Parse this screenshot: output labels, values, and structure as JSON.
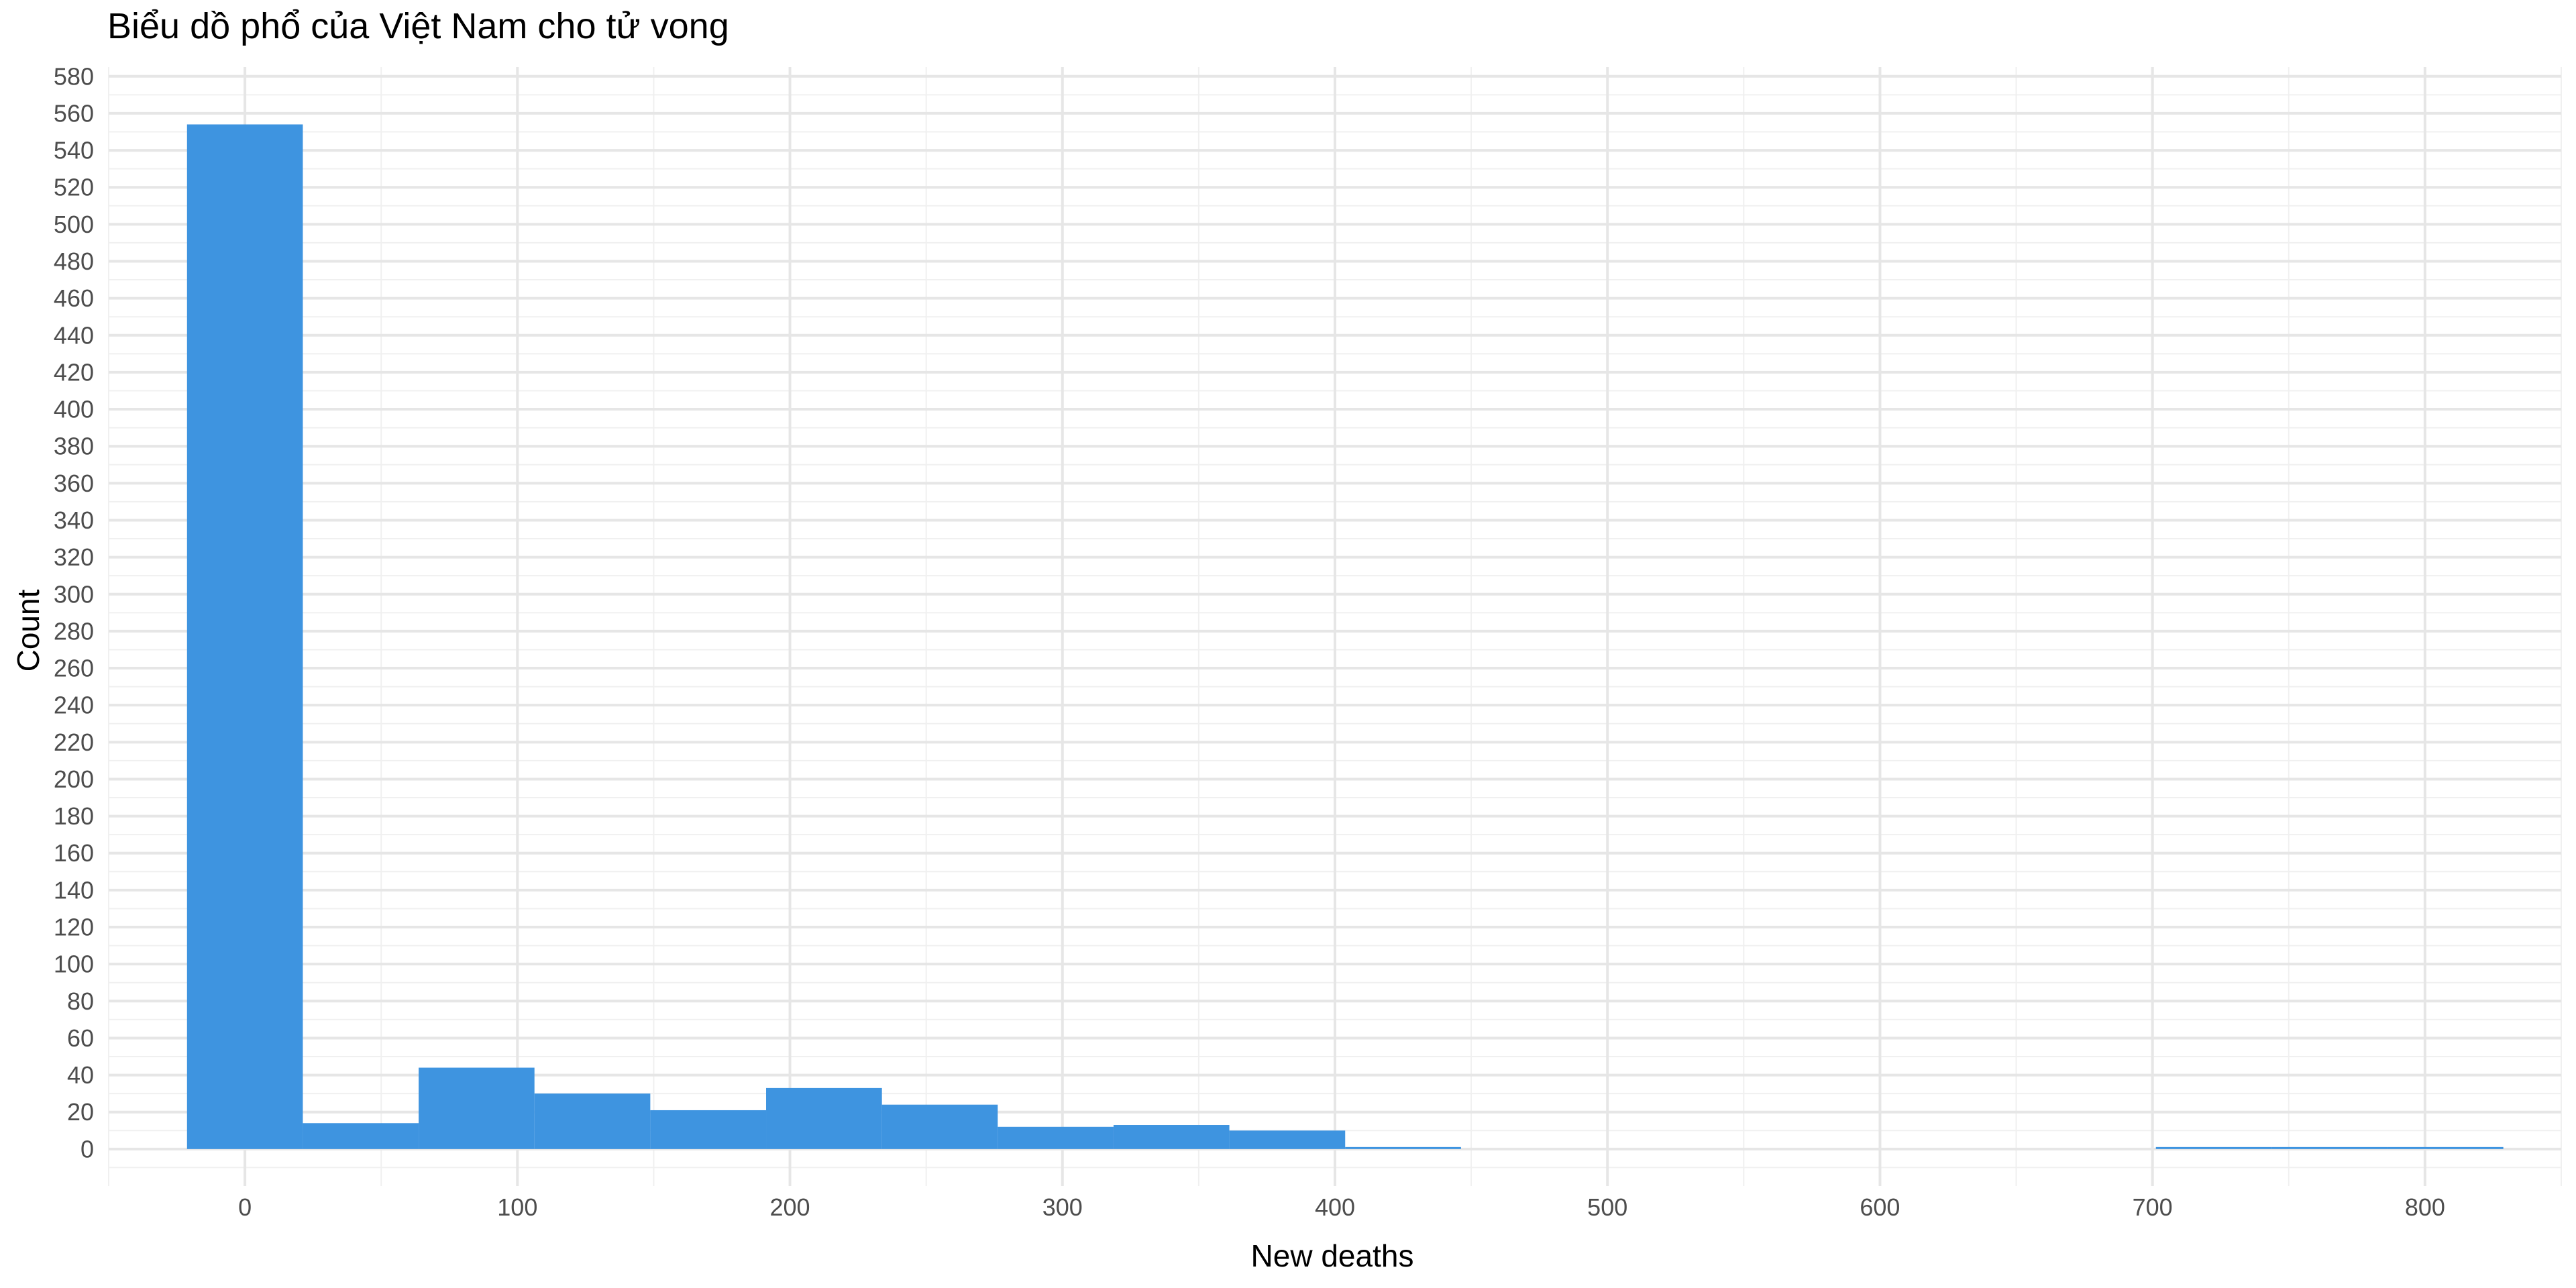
{
  "chart_data": {
    "type": "bar",
    "title": "Biểu dồ phổ của Việt Nam cho tử vong",
    "xlabel": "New deaths",
    "ylabel": "Count",
    "bin_width": 42.5,
    "bins": [
      {
        "x0": -21.25,
        "x1": 21.25,
        "count": 554
      },
      {
        "x0": 21.25,
        "x1": 63.75,
        "count": 14
      },
      {
        "x0": 63.75,
        "x1": 106.25,
        "count": 44
      },
      {
        "x0": 106.25,
        "x1": 148.75,
        "count": 30
      },
      {
        "x0": 148.75,
        "x1": 191.25,
        "count": 21
      },
      {
        "x0": 191.25,
        "x1": 233.75,
        "count": 33
      },
      {
        "x0": 233.75,
        "x1": 276.25,
        "count": 24
      },
      {
        "x0": 276.25,
        "x1": 318.75,
        "count": 12
      },
      {
        "x0": 318.75,
        "x1": 361.25,
        "count": 13
      },
      {
        "x0": 361.25,
        "x1": 403.75,
        "count": 10
      },
      {
        "x0": 403.75,
        "x1": 446.25,
        "count": 1
      },
      {
        "x0": 701.25,
        "x1": 743.75,
        "count": 1
      },
      {
        "x0": 743.75,
        "x1": 786.25,
        "count": 1
      },
      {
        "x0": 786.25,
        "x1": 828.75,
        "count": 1
      }
    ],
    "xlim": [
      -50,
      850
    ],
    "ylim": [
      -20,
      585
    ],
    "x_ticks": [
      0,
      100,
      200,
      300,
      400,
      500,
      600,
      700,
      800
    ],
    "y_ticks": [
      0,
      20,
      40,
      60,
      80,
      100,
      120,
      140,
      160,
      180,
      200,
      220,
      240,
      260,
      280,
      300,
      320,
      340,
      360,
      380,
      400,
      420,
      440,
      460,
      480,
      500,
      520,
      540,
      560,
      580
    ],
    "bar_color": "#3e94e0",
    "grid": true,
    "legend": "none"
  }
}
